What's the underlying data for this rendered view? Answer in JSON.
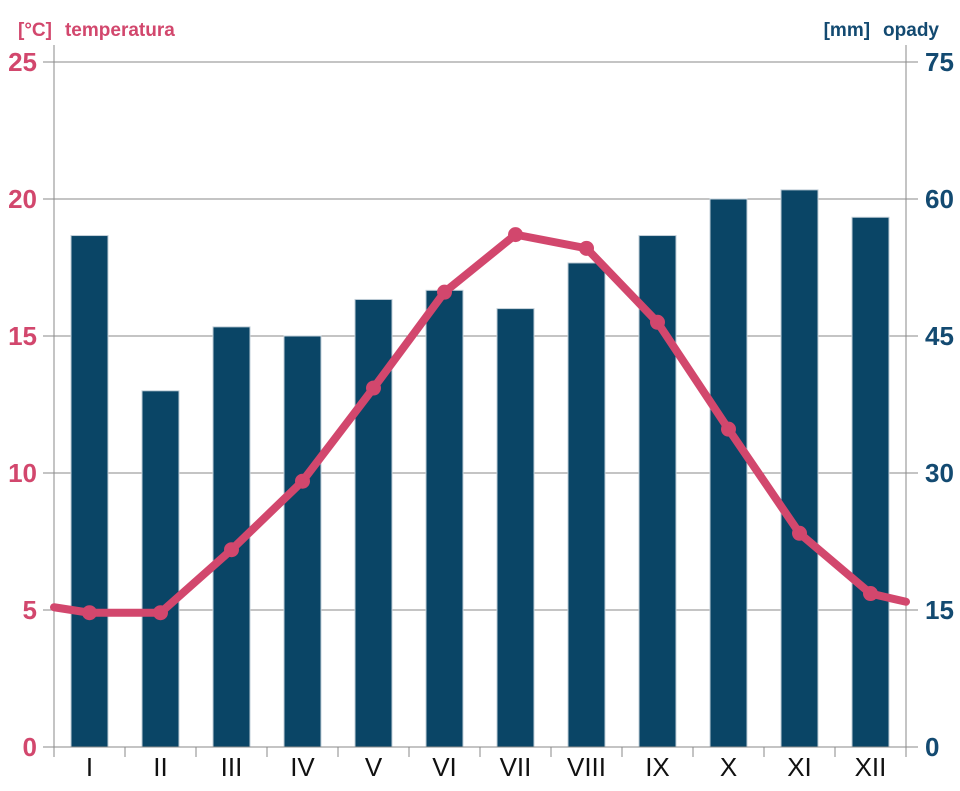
{
  "header_left": {
    "unit": "[°C]",
    "label": "temperatura",
    "color": "#d2476d"
  },
  "header_right": {
    "unit": "[mm]",
    "label": "opady",
    "color": "#134a71"
  },
  "chart_data": {
    "type": "combo",
    "title": "",
    "categories": [
      "I",
      "II",
      "III",
      "IV",
      "V",
      "VI",
      "VII",
      "VIII",
      "IX",
      "X",
      "XI",
      "XII"
    ],
    "series": [
      {
        "name": "opady",
        "type": "bar",
        "axis": "right",
        "unit": "mm",
        "color": "#0a4566",
        "stroke": "#c2cfd8",
        "values": [
          56,
          39,
          46,
          45,
          49,
          50,
          48,
          53,
          56,
          60,
          61,
          58
        ]
      },
      {
        "name": "temperatura",
        "type": "line",
        "axis": "left",
        "unit": "°C",
        "color": "#d2476d",
        "values": [
          4.9,
          4.9,
          7.2,
          9.7,
          13.1,
          16.6,
          18.7,
          18.2,
          15.5,
          11.6,
          7.8,
          5.6
        ],
        "edge_start": 5.1,
        "edge_end": 5.3
      }
    ],
    "left_axis": {
      "label": "[°C] temperatura",
      "min": 0,
      "max": 25,
      "ticks": [
        0,
        5,
        10,
        15,
        20,
        25
      ],
      "color": "#d2476d"
    },
    "right_axis": {
      "label": "[mm] opady",
      "min": 0,
      "max": 75,
      "ticks": [
        0,
        15,
        30,
        45,
        60,
        75
      ],
      "color": "#134a71"
    },
    "x_axis": {
      "label_color": "#111111",
      "tick_color": "#8a8a8a"
    },
    "grid": {
      "show": true,
      "color": "#8a8a8a"
    },
    "background": "#ffffff",
    "legend": "none"
  }
}
